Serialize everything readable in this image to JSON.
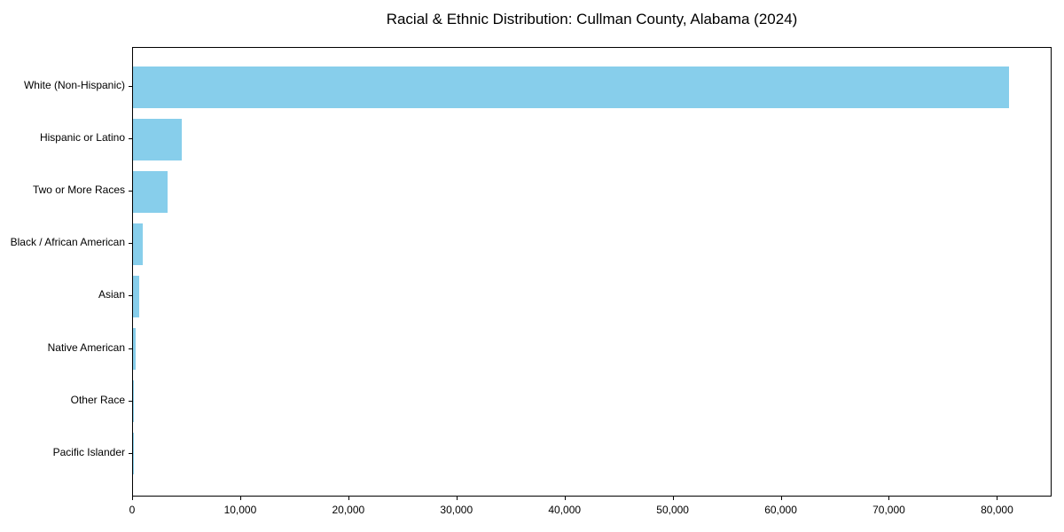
{
  "chart_data": {
    "type": "bar",
    "orientation": "horizontal",
    "title": "Racial & Ethnic Distribution: Cullman County, Alabama (2024)",
    "categories": [
      "White (Non-Hispanic)",
      "Hispanic or Latino",
      "Two or More Races",
      "Black / African American",
      "Asian",
      "Native American",
      "Other Race",
      "Pacific Islander"
    ],
    "values": [
      81000,
      4500,
      3200,
      900,
      550,
      250,
      90,
      30
    ],
    "xlabel": "",
    "ylabel": "",
    "xlim": [
      0,
      85050
    ],
    "xtick_values": [
      0,
      10000,
      20000,
      30000,
      40000,
      50000,
      60000,
      70000,
      80000
    ],
    "xtick_labels": [
      "0",
      "10,000",
      "20,000",
      "30,000",
      "40,000",
      "50,000",
      "60,000",
      "70,000",
      "80,000"
    ],
    "bar_color": "#87CEEB",
    "axis_color": "#000000",
    "text_color": "#000000",
    "background_color": "#ffffff",
    "grid": false,
    "legend": "none"
  }
}
